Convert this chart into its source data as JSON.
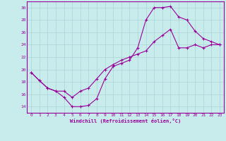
{
  "xlabel": "Windchill (Refroidissement éolien,°C)",
  "bg_color": "#c8ecec",
  "grid_color": "#b0d8d8",
  "line_color": "#990099",
  "xlim": [
    -0.5,
    23.5
  ],
  "ylim": [
    13,
    31
  ],
  "xticks": [
    0,
    1,
    2,
    3,
    4,
    5,
    6,
    7,
    8,
    9,
    10,
    11,
    12,
    13,
    14,
    15,
    16,
    17,
    18,
    19,
    20,
    21,
    22,
    23
  ],
  "yticks": [
    14,
    16,
    18,
    20,
    22,
    24,
    26,
    28,
    30
  ],
  "line1_x": [
    0,
    1,
    2,
    3,
    4,
    5,
    6,
    7,
    8,
    9,
    10,
    11,
    12,
    13,
    14,
    15,
    16,
    17,
    18,
    19,
    20,
    21,
    22,
    23
  ],
  "line1_y": [
    19.5,
    18.2,
    17.0,
    16.5,
    15.5,
    14.0,
    14.0,
    14.2,
    15.3,
    18.5,
    20.5,
    21.0,
    21.5,
    23.5,
    28.0,
    30.0,
    30.0,
    30.2,
    28.5,
    28.0,
    26.2,
    25.0,
    24.5,
    24.0
  ],
  "line2_x": [
    0,
    1,
    2,
    3,
    4,
    5,
    6,
    7,
    8,
    9,
    10,
    11,
    12,
    13,
    14,
    15,
    16,
    17,
    18,
    19,
    20,
    21,
    22,
    23
  ],
  "line2_y": [
    19.5,
    18.2,
    17.0,
    16.5,
    16.5,
    15.5,
    16.5,
    17.0,
    18.5,
    20.0,
    20.8,
    21.5,
    22.0,
    22.5,
    23.0,
    24.5,
    25.5,
    26.5,
    23.5,
    23.5,
    24.0,
    23.5,
    24.0,
    24.0
  ]
}
